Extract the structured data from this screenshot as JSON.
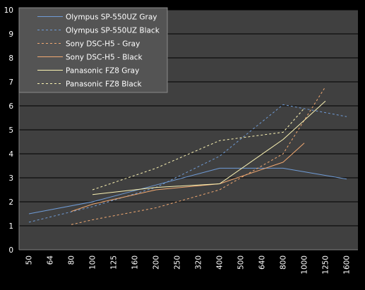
{
  "chart_data": {
    "type": "line",
    "title": "",
    "xlabel": "",
    "ylabel": "",
    "ylim": [
      0,
      10
    ],
    "yticks": [
      0,
      1,
      2,
      3,
      4,
      5,
      6,
      7,
      8,
      9,
      10
    ],
    "categories": [
      "50",
      "64",
      "80",
      "100",
      "125",
      "160",
      "200",
      "250",
      "320",
      "400",
      "500",
      "640",
      "800",
      "1000",
      "1250",
      "1600"
    ],
    "grid": "horizontal",
    "legend_position": "top-left",
    "background": "#404040",
    "series": [
      {
        "name": "Olympus SP-550UZ Gray",
        "color": "#6f9bd6",
        "dash": "solid",
        "points": [
          [
            0,
            1.5
          ],
          [
            3,
            2.0
          ],
          [
            6,
            2.7
          ],
          [
            9,
            3.4
          ],
          [
            12,
            3.4
          ],
          [
            15,
            2.95
          ]
        ]
      },
      {
        "name": "Olympus SP-550UZ Black",
        "color": "#6f9bd6",
        "dash": "dashed",
        "points": [
          [
            0,
            1.15
          ],
          [
            3,
            1.8
          ],
          [
            6,
            2.6
          ],
          [
            9,
            3.9
          ],
          [
            12,
            6.05
          ],
          [
            15,
            5.55
          ]
        ]
      },
      {
        "name": "Sony DSC-H5 - Gray",
        "color": "#f2a971",
        "dash": "dashed",
        "points": [
          [
            2,
            1.05
          ],
          [
            3,
            1.25
          ],
          [
            6,
            1.75
          ],
          [
            9,
            2.5
          ],
          [
            12,
            4.0
          ],
          [
            14,
            6.8
          ]
        ]
      },
      {
        "name": "Sony DSC-H5 - Black",
        "color": "#f2a971",
        "dash": "solid",
        "points": [
          [
            2,
            1.6
          ],
          [
            3,
            1.9
          ],
          [
            6,
            2.5
          ],
          [
            9,
            2.75
          ],
          [
            12,
            3.65
          ],
          [
            13,
            4.45
          ]
        ]
      },
      {
        "name": "Panasonic FZ8 Gray",
        "color": "#fbf3b3",
        "dash": "solid",
        "points": [
          [
            3,
            2.3
          ],
          [
            6,
            2.6
          ],
          [
            9,
            2.75
          ],
          [
            12,
            4.6
          ],
          [
            14,
            6.2
          ]
        ]
      },
      {
        "name": "Panasonic FZ8 Black",
        "color": "#fbf3b3",
        "dash": "dashed",
        "points": [
          [
            3,
            2.5
          ],
          [
            6,
            3.4
          ],
          [
            9,
            4.55
          ],
          [
            12,
            4.9
          ],
          [
            13,
            5.9
          ]
        ]
      }
    ]
  }
}
